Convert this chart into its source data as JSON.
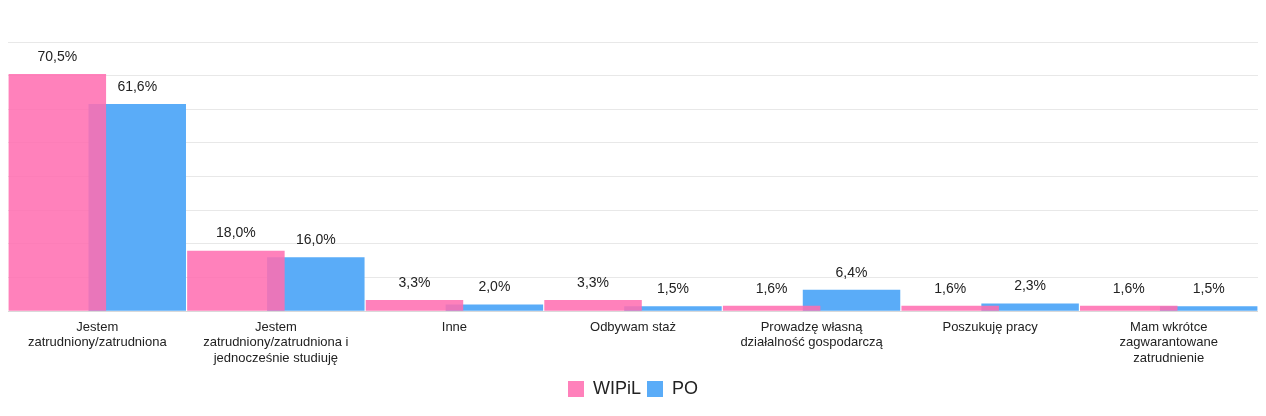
{
  "chart_data": {
    "type": "bar",
    "categories": [
      "Jestem zatrudniony/zatrudniona",
      "Jestem zatrudniony/zatrudniona i jednocześnie studiuję",
      "Inne",
      "Odbywam staż",
      "Prowadzę własną działalność gospodarczą",
      "Poszukuję pracy",
      "Mam wkrótce zagwarantowane zatrudnienie"
    ],
    "series": [
      {
        "name": "WIPiL",
        "color": "#ff6eb0",
        "values": [
          70.5,
          18.0,
          3.3,
          3.3,
          1.6,
          1.6,
          1.6
        ],
        "value_labels": [
          "70,5%",
          "18,0%",
          "3,3%",
          "3,3%",
          "1,6%",
          "1,6%",
          "1,6%"
        ]
      },
      {
        "name": "PO",
        "color": "#5aacf8",
        "values": [
          61.6,
          16.0,
          2.0,
          1.5,
          6.4,
          2.3,
          1.5
        ],
        "value_labels": [
          "61,6%",
          "16,0%",
          "2,0%",
          "1,5%",
          "6,4%",
          "2,3%",
          "1,5%"
        ]
      }
    ],
    "ylim": [
      0,
      80
    ],
    "yticks": [
      {
        "value": 0,
        "label": null
      },
      {
        "value": 10,
        "label": null
      },
      {
        "value": 20,
        "label": null
      },
      {
        "value": 30,
        "label": null
      },
      {
        "value": 40,
        "label": null
      },
      {
        "value": 50,
        "label": null
      },
      {
        "value": 60,
        "label": null
      },
      {
        "value": 70,
        "label": null
      },
      {
        "value": 80,
        "label": null
      }
    ],
    "grid": "y",
    "tick_labels": "x",
    "legend": "bottom"
  }
}
